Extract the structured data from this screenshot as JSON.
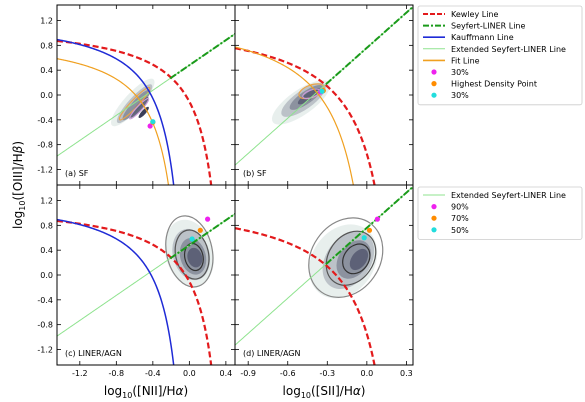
{
  "chart_data": {
    "type": "scatter",
    "ylabel": "log10([OIII]/Hβ)",
    "xlabels": {
      "left": "log10([NII]/Hα)",
      "right": "log10([SII]/Hα)"
    },
    "xlabel_parts": {
      "left": [
        "log",
        "10",
        "([NII]/H",
        "α",
        ")"
      ],
      "right": [
        "log",
        "10",
        "([SII]/H",
        "α",
        ")"
      ]
    },
    "ylabel_parts": [
      "log",
      "10",
      "([OIII]/H",
      "β",
      ")"
    ],
    "axes": {
      "left": {
        "xlim": [
          -1.45,
          0.5
        ],
        "xticks": [
          -1.2,
          -0.8,
          -0.4,
          0.0,
          0.4
        ],
        "xtick_labels": [
          "-1.2",
          "-0.8",
          "-0.4",
          "0.0",
          "0.4"
        ]
      },
      "right": {
        "xlim": [
          -1.0,
          0.35
        ],
        "xticks": [
          -0.9,
          -0.6,
          -0.3,
          0.0,
          0.3
        ],
        "xtick_labels": [
          "-0.9",
          "-0.6",
          "-0.3",
          "0.0",
          "0.3"
        ]
      },
      "ylim": [
        -1.45,
        1.45
      ],
      "yticks": [
        -1.2,
        -0.8,
        -0.4,
        0.0,
        0.4,
        0.8,
        1.2
      ],
      "ytick_labels": [
        "-1.2",
        "-0.8",
        "-0.4",
        "0.0",
        "0.4",
        "0.8",
        "1.2"
      ]
    },
    "panels": [
      {
        "id": "a",
        "label": "(a) SF",
        "xaxis": "left",
        "row": 0,
        "col": 0,
        "lines": [
          "kewley_nii",
          "seyfert_liner_nii",
          "ext_seyfert_liner_nii",
          "kauffmann_nii",
          "fit_nii"
        ],
        "points": [
          {
            "kind": "magenta",
            "x": -0.43,
            "y": -0.5
          },
          {
            "kind": "orange",
            "x": -0.4,
            "y": -0.44
          },
          {
            "kind": "cyan",
            "x": -0.4,
            "y": -0.43
          }
        ],
        "density": [
          {
            "cx": -0.62,
            "cy": -0.12,
            "rx": 0.34,
            "ry": 0.14,
            "angle": -48,
            "level": 1
          },
          {
            "cx": -0.6,
            "cy": -0.14,
            "rx": 0.28,
            "ry": 0.1,
            "angle": -48,
            "level": 2
          },
          {
            "cx": -0.58,
            "cy": -0.16,
            "rx": 0.22,
            "ry": 0.075,
            "angle": -48,
            "level": 3
          },
          {
            "cx": -0.55,
            "cy": -0.2,
            "rx": 0.15,
            "ry": 0.05,
            "angle": -48,
            "level": 4
          },
          {
            "cx": -0.5,
            "cy": -0.28,
            "rx": 0.08,
            "ry": 0.035,
            "angle": -48,
            "level": 5
          }
        ],
        "contours": [
          {
            "cx": -0.6,
            "cy": -0.14,
            "rx": 0.24,
            "ry": 0.06,
            "angle": -47,
            "color": "#e8a34a"
          },
          {
            "cx": -0.55,
            "cy": -0.22,
            "rx": 0.15,
            "ry": 0.04,
            "angle": -47,
            "color": "#c99bd8"
          }
        ]
      },
      {
        "id": "b",
        "label": "(b) SF",
        "xaxis": "right",
        "row": 0,
        "col": 1,
        "lines": [
          "kewley_sii",
          "seyfert_liner_sii",
          "ext_seyfert_liner_sii",
          "fit_sii"
        ],
        "points": [
          {
            "kind": "magenta",
            "x": -0.35,
            "y": 0.05
          },
          {
            "kind": "orange",
            "x": -0.33,
            "y": 0.07
          },
          {
            "kind": "cyan",
            "x": -0.34,
            "y": 0.06
          }
        ],
        "density": [
          {
            "cx": -0.5,
            "cy": -0.12,
            "rx": 0.26,
            "ry": 0.2,
            "angle": -35,
            "level": 1
          },
          {
            "cx": -0.48,
            "cy": -0.08,
            "rx": 0.2,
            "ry": 0.15,
            "angle": -35,
            "level": 2
          },
          {
            "cx": -0.46,
            "cy": -0.04,
            "rx": 0.15,
            "ry": 0.1,
            "angle": -35,
            "level": 3
          },
          {
            "cx": -0.44,
            "cy": -0.02,
            "rx": 0.1,
            "ry": 0.06,
            "angle": -35,
            "level": 4
          }
        ],
        "contours": [
          {
            "cx": -0.42,
            "cy": 0.06,
            "rx": 0.1,
            "ry": 0.1,
            "angle": -20,
            "color": "#e8a34a"
          },
          {
            "cx": -0.42,
            "cy": 0.02,
            "rx": 0.07,
            "ry": 0.06,
            "angle": -20,
            "color": "#c99bd8"
          }
        ]
      },
      {
        "id": "c",
        "label": "(c) LINER/AGN",
        "xaxis": "left",
        "row": 1,
        "col": 0,
        "lines": [
          "kewley_nii",
          "seyfert_liner_nii",
          "ext_seyfert_liner_nii",
          "kauffmann_nii"
        ],
        "points": [
          {
            "kind": "magenta",
            "x": 0.2,
            "y": 0.9
          },
          {
            "kind": "orange",
            "x": 0.12,
            "y": 0.72
          },
          {
            "kind": "cyan",
            "x": 0.03,
            "y": 0.58
          }
        ],
        "density": [
          {
            "cx": 0.0,
            "cy": 0.35,
            "rx": 0.26,
            "ry": 0.55,
            "angle": -15,
            "level": 1
          },
          {
            "cx": 0.02,
            "cy": 0.33,
            "rx": 0.2,
            "ry": 0.42,
            "angle": -15,
            "level": 2
          },
          {
            "cx": 0.04,
            "cy": 0.3,
            "rx": 0.14,
            "ry": 0.3,
            "angle": -15,
            "level": 3
          },
          {
            "cx": 0.06,
            "cy": 0.28,
            "rx": 0.08,
            "ry": 0.16,
            "angle": -15,
            "level": 4
          }
        ],
        "contours": [
          {
            "cx": 0.0,
            "cy": 0.38,
            "rx": 0.25,
            "ry": 0.58,
            "angle": -12,
            "color": "#888888"
          },
          {
            "cx": 0.03,
            "cy": 0.33,
            "rx": 0.18,
            "ry": 0.4,
            "angle": -12,
            "color": "#555555"
          },
          {
            "cx": 0.05,
            "cy": 0.29,
            "rx": 0.1,
            "ry": 0.22,
            "angle": -12,
            "color": "#333333"
          }
        ]
      },
      {
        "id": "d",
        "label": "(d) LINER/AGN",
        "xaxis": "right",
        "row": 1,
        "col": 1,
        "lines": [
          "kewley_sii",
          "seyfert_liner_sii",
          "ext_seyfert_liner_sii"
        ],
        "points": [
          {
            "kind": "magenta",
            "x": 0.08,
            "y": 0.9
          },
          {
            "kind": "orange",
            "x": 0.02,
            "y": 0.72
          },
          {
            "kind": "cyan",
            "x": -0.02,
            "y": 0.6
          }
        ],
        "density": [
          {
            "cx": -0.18,
            "cy": 0.22,
            "rx": 0.3,
            "ry": 0.5,
            "angle": -55,
            "level": 1
          },
          {
            "cx": -0.14,
            "cy": 0.24,
            "rx": 0.24,
            "ry": 0.36,
            "angle": -55,
            "level": 2
          },
          {
            "cx": -0.1,
            "cy": 0.25,
            "rx": 0.16,
            "ry": 0.24,
            "angle": -55,
            "level": 3
          },
          {
            "cx": -0.06,
            "cy": 0.25,
            "rx": 0.09,
            "ry": 0.12,
            "angle": -55,
            "level": 4
          }
        ],
        "contours": [
          {
            "cx": -0.16,
            "cy": 0.28,
            "rx": 0.32,
            "ry": 0.55,
            "angle": -55,
            "color": "#888888"
          },
          {
            "cx": -0.12,
            "cy": 0.27,
            "rx": 0.22,
            "ry": 0.36,
            "angle": -55,
            "color": "#555555"
          },
          {
            "cx": -0.08,
            "cy": 0.26,
            "rx": 0.12,
            "ry": 0.2,
            "angle": -55,
            "color": "#333333"
          }
        ]
      }
    ],
    "legends": [
      {
        "position": "upper-right",
        "entries": [
          {
            "label": "Kewley Line",
            "style": "dashed",
            "color": "#e31a1c"
          },
          {
            "label": "Seyfert-LINER Line",
            "style": "dashdot",
            "color": "#1a9a1a"
          },
          {
            "label": "Kauffmann Line",
            "style": "solid",
            "color": "#1f2bd6"
          },
          {
            "label": "Extended Seyfert-LINER Line",
            "style": "thin",
            "color": "#8fe38f"
          },
          {
            "label": "Fit Line",
            "style": "solid",
            "color": "#f0a020"
          },
          {
            "label": "30%",
            "style": "dot",
            "color": "#ee22ee"
          },
          {
            "label": "Highest Density Point",
            "style": "dot",
            "color": "#ff8c00"
          },
          {
            "label": "30%",
            "style": "dot",
            "color": "#22dddd"
          }
        ]
      },
      {
        "position": "lower-right",
        "entries": [
          {
            "label": "Extended Seyfert-LINER Line",
            "style": "thin",
            "color": "#8fe38f"
          },
          {
            "label": "90%",
            "style": "dot",
            "color": "#ee22ee"
          },
          {
            "label": "70%",
            "style": "dot",
            "color": "#ff8c00"
          },
          {
            "label": "50%",
            "style": "dot",
            "color": "#22dddd"
          }
        ]
      }
    ],
    "colors": {
      "kewley": "#e31a1c",
      "seyfert_liner": "#1a9a1a",
      "kauffmann": "#1f2bd6",
      "extended": "#8fe38f",
      "fit": "#f0a020",
      "density_low": "#e6eeec",
      "density_high": "#2a2d4a"
    }
  }
}
